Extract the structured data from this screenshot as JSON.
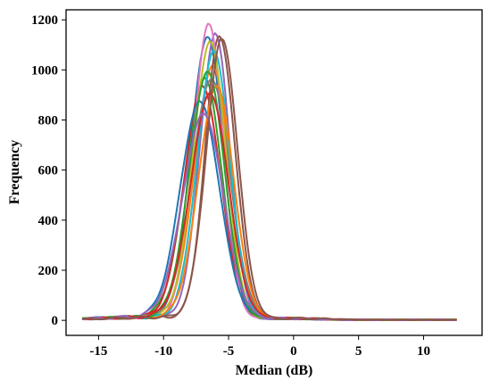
{
  "chart_data": {
    "type": "line",
    "title": "",
    "xlabel": "Median (dB)",
    "ylabel": "Frequency",
    "xlim": [
      -17.5,
      14.5
    ],
    "ylim": [
      -60,
      1240
    ],
    "xticks": [
      -15,
      -10,
      -5,
      0,
      5,
      10
    ],
    "yticks": [
      0,
      200,
      400,
      600,
      800,
      1000,
      1200
    ],
    "grid": false,
    "legend": "none",
    "series": [
      {
        "color": "#1f77b4",
        "peak_x": -6.6,
        "peak_y": 1130,
        "sigma_left": 1.3,
        "sigma_right": 1.2
      },
      {
        "color": "#ff7f0e",
        "peak_x": -6.2,
        "peak_y": 1010,
        "sigma_left": 1.4,
        "sigma_right": 1.3
      },
      {
        "color": "#2ca02c",
        "peak_x": -6.8,
        "peak_y": 960,
        "sigma_left": 1.5,
        "sigma_right": 1.3
      },
      {
        "color": "#d62728",
        "peak_x": -7.0,
        "peak_y": 930,
        "sigma_left": 1.4,
        "sigma_right": 1.4
      },
      {
        "color": "#9467bd",
        "peak_x": -6.0,
        "peak_y": 1140,
        "sigma_left": 1.2,
        "sigma_right": 1.1
      },
      {
        "color": "#8c564b",
        "peak_x": -5.7,
        "peak_y": 1130,
        "sigma_left": 1.1,
        "sigma_right": 1.2
      },
      {
        "color": "#e377c2",
        "peak_x": -6.5,
        "peak_y": 1180,
        "sigma_left": 1.2,
        "sigma_right": 1.1
      },
      {
        "color": "#7f7f7f",
        "peak_x": -6.3,
        "peak_y": 960,
        "sigma_left": 1.5,
        "sigma_right": 1.4
      },
      {
        "color": "#bcbd22",
        "peak_x": -6.4,
        "peak_y": 1110,
        "sigma_left": 1.3,
        "sigma_right": 1.2
      },
      {
        "color": "#17becf",
        "peak_x": -6.1,
        "peak_y": 1070,
        "sigma_left": 1.3,
        "sigma_right": 1.2
      },
      {
        "color": "#1f77b4",
        "peak_x": -7.2,
        "peak_y": 870,
        "sigma_left": 1.5,
        "sigma_right": 1.5
      },
      {
        "color": "#ff7f0e",
        "peak_x": -5.9,
        "peak_y": 930,
        "sigma_left": 1.4,
        "sigma_right": 1.3
      },
      {
        "color": "#2ca02c",
        "peak_x": -6.6,
        "peak_y": 990,
        "sigma_left": 1.4,
        "sigma_right": 1.3
      },
      {
        "color": "#d62728",
        "peak_x": -6.4,
        "peak_y": 900,
        "sigma_left": 1.5,
        "sigma_right": 1.4
      },
      {
        "color": "#9467bd",
        "peak_x": -6.9,
        "peak_y": 820,
        "sigma_left": 1.6,
        "sigma_right": 1.5
      },
      {
        "color": "#8c564b",
        "peak_x": -5.5,
        "peak_y": 1120,
        "sigma_left": 1.2,
        "sigma_right": 1.2
      }
    ]
  }
}
